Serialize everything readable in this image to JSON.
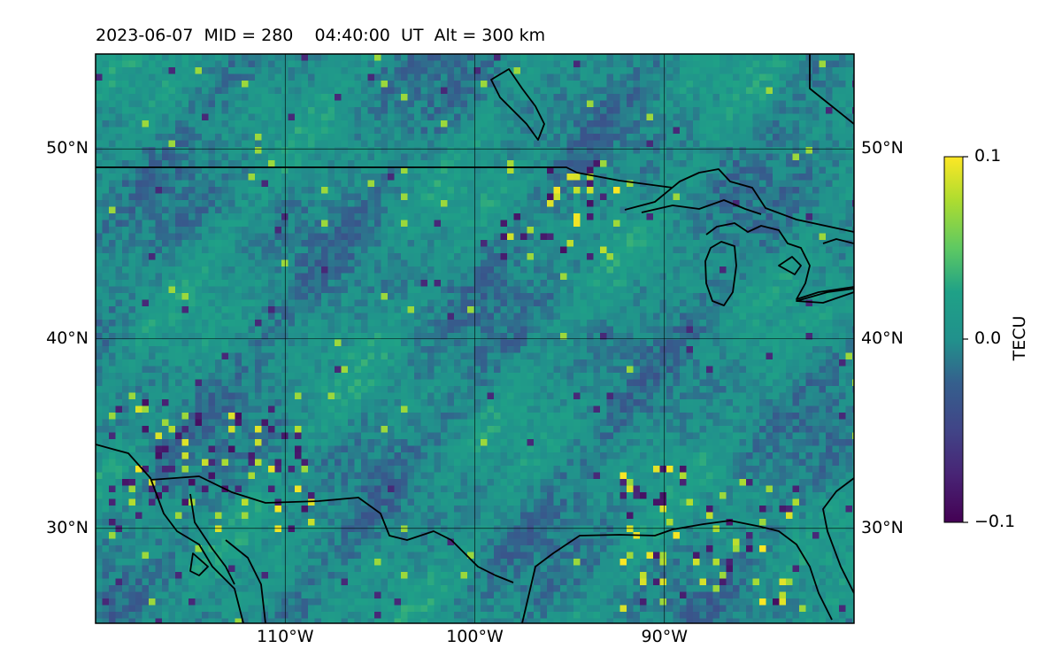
{
  "title": "2023-06-07  MID = 280    04:40:00  UT  Alt = 300 km",
  "map": {
    "lon_range": [
      -120,
      -80
    ],
    "lat_range": [
      25,
      55
    ],
    "lon_ticks": [
      {
        "value": -110,
        "label": "110°W"
      },
      {
        "value": -100,
        "label": "100°W"
      },
      {
        "value": -90,
        "label": "90°W"
      }
    ],
    "lat_ticks": [
      {
        "value": 50,
        "label": "50°N"
      },
      {
        "value": 40,
        "label": "40°N"
      },
      {
        "value": 30,
        "label": "30°N"
      }
    ],
    "gridlines": true,
    "field": "TEC perturbation map with speckled small-scale structure; stronger positive/negative patches near 47°N 95°W and along 32–35°N 110–115°W"
  },
  "colorbar": {
    "label": "TECU",
    "colormap": "viridis",
    "range": [
      -0.1,
      0.1
    ],
    "ticks": [
      "0.1",
      "0.0",
      "−0.1"
    ]
  }
}
